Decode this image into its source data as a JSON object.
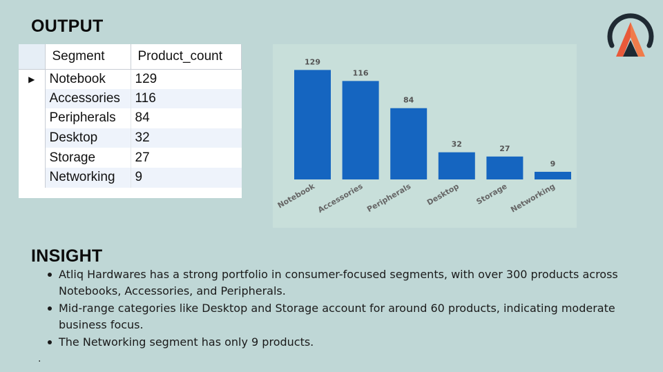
{
  "headings": {
    "output": "OUTPUT",
    "insight": "INSIGHT"
  },
  "colors": {
    "bar": "#1565c0",
    "background": "#bfd7d6",
    "chart_bg": "#c8dfda",
    "logo_dark": "#1f2a33",
    "logo_orange": "#e8593a"
  },
  "table": {
    "columns": [
      "Segment",
      "Product_count"
    ],
    "rows": [
      {
        "segment": "Notebook",
        "count": "129"
      },
      {
        "segment": "Accessories",
        "count": "116"
      },
      {
        "segment": "Peripherals",
        "count": "84"
      },
      {
        "segment": "Desktop",
        "count": "32"
      },
      {
        "segment": "Storage",
        "count": "27"
      },
      {
        "segment": "Networking",
        "count": "9"
      }
    ],
    "row_pointer_icon": "triangle-right-icon"
  },
  "chart_data": {
    "type": "bar",
    "categories": [
      "Notebook",
      "Accessories",
      "Peripherals",
      "Desktop",
      "Storage",
      "Networking"
    ],
    "values": [
      129,
      116,
      84,
      32,
      27,
      9
    ],
    "title": "",
    "xlabel": "",
    "ylabel": "",
    "ylim": [
      0,
      135
    ],
    "grid": false,
    "data_labels": true
  },
  "insights": [
    "Atliq Hardwares has a strong portfolio in consumer-focused segments, with over 300 products across Notebooks, Accessories, and Peripherals.",
    "Mid-range categories like Desktop and Storage account for around 60 products, indicating moderate business focus.",
    "The Networking segment has only 9 products."
  ],
  "footer_mark": "."
}
